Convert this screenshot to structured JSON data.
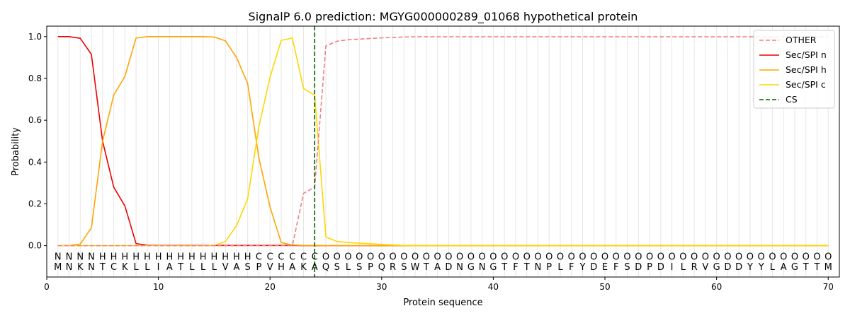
{
  "chart_data": {
    "type": "line",
    "title": "SignalP 6.0 prediction: MGYG000000289_01068 hypothetical protein",
    "xlabel": "Protein sequence",
    "ylabel": "Probability",
    "xlim": [
      0,
      71
    ],
    "ylim": [
      -0.15,
      1.05
    ],
    "x_ticks": [
      0,
      10,
      20,
      30,
      40,
      50,
      60,
      70
    ],
    "y_ticks": [
      0.0,
      0.2,
      0.4,
      0.6,
      0.8,
      1.0
    ],
    "x_tick_labels": [
      "0",
      "10",
      "20",
      "30",
      "40",
      "50",
      "60",
      "70"
    ],
    "y_tick_labels": [
      "0.0",
      "0.2",
      "0.4",
      "0.6",
      "0.8",
      "1.0"
    ],
    "grid": "vertical lines at every residue",
    "legend_position": "top-right",
    "sequence": [
      "M",
      "N",
      "K",
      "N",
      "T",
      "C",
      "K",
      "L",
      "L",
      "I",
      "A",
      "T",
      "L",
      "L",
      "L",
      "V",
      "A",
      "S",
      "P",
      "V",
      "H",
      "A",
      "K",
      "A",
      "Q",
      "S",
      "L",
      "S",
      "P",
      "Q",
      "R",
      "S",
      "W",
      "T",
      "A",
      "D",
      "N",
      "G",
      "N",
      "G",
      "T",
      "F",
      "T",
      "N",
      "P",
      "L",
      "F",
      "Y",
      "D",
      "E",
      "F",
      "S",
      "D",
      "P",
      "D",
      "I",
      "L",
      "R",
      "V",
      "G",
      "D",
      "D",
      "Y",
      "Y",
      "L",
      "A",
      "G",
      "T",
      "T",
      "M"
    ],
    "region_labels": [
      "N",
      "N",
      "N",
      "N",
      "H",
      "H",
      "H",
      "H",
      "H",
      "H",
      "H",
      "H",
      "H",
      "H",
      "H",
      "H",
      "H",
      "H",
      "C",
      "C",
      "C",
      "C",
      "C",
      "C",
      "O",
      "O",
      "O",
      "O",
      "O",
      "O",
      "O",
      "O",
      "O",
      "O",
      "O",
      "O",
      "O",
      "O",
      "O",
      "O",
      "O",
      "O",
      "O",
      "O",
      "O",
      "O",
      "O",
      "O",
      "O",
      "O",
      "O",
      "O",
      "O",
      "O",
      "O",
      "O",
      "O",
      "O",
      "O",
      "O",
      "O",
      "O",
      "O",
      "O",
      "O",
      "O",
      "O",
      "O",
      "O",
      "O"
    ],
    "region_colors": {
      "N": "#ff0000",
      "H": "#ffa500",
      "C": "#ffd700",
      "O": "#808080"
    },
    "cleavage_site": 24,
    "series": [
      {
        "name": "OTHER",
        "color": "#f08080",
        "dash": "dashed",
        "values": [
          0,
          0,
          0,
          0,
          0,
          0,
          0,
          0,
          0,
          0,
          0,
          0,
          0,
          0,
          0,
          0,
          0,
          0,
          0,
          0,
          0,
          0,
          0.25,
          0.28,
          0.955,
          0.978,
          0.985,
          0.988,
          0.991,
          0.994,
          0.996,
          0.998,
          0.999,
          0.999,
          0.999,
          0.999,
          0.999,
          0.999,
          0.999,
          0.999,
          0.999,
          0.999,
          0.999,
          0.999,
          0.999,
          0.999,
          0.999,
          0.999,
          0.999,
          0.999,
          0.999,
          0.999,
          0.999,
          0.999,
          0.999,
          0.999,
          0.999,
          0.999,
          0.999,
          0.999,
          0.999,
          0.999,
          0.999,
          0.999,
          0.999,
          0.999,
          0.999,
          0.999,
          0.999,
          0.999
        ]
      },
      {
        "name": "Sec/SPI n",
        "color": "#ee0000",
        "dash": "solid",
        "values": [
          1.0,
          1.0,
          0.992,
          0.915,
          0.5,
          0.28,
          0.19,
          0.01,
          0.002,
          0.001,
          0.001,
          0.001,
          0.001,
          0.001,
          0.001,
          0.001,
          0.001,
          0.001,
          0.001,
          0.001,
          0.001,
          0.001,
          0,
          0,
          0,
          0,
          0,
          0,
          0,
          0,
          0,
          0,
          0,
          0,
          0,
          0,
          0,
          0,
          0,
          0,
          0,
          0,
          0,
          0,
          0,
          0,
          0,
          0,
          0,
          0,
          0,
          0,
          0,
          0,
          0,
          0,
          0,
          0,
          0,
          0,
          0,
          0,
          0,
          0,
          0,
          0,
          0,
          0,
          0,
          0
        ]
      },
      {
        "name": "Sec/SPI h",
        "color": "#ffa500",
        "dash": "solid",
        "values": [
          0,
          0,
          0.008,
          0.085,
          0.5,
          0.72,
          0.81,
          0.993,
          1.0,
          1.0,
          1.0,
          1.0,
          1.0,
          1.0,
          0.998,
          0.98,
          0.9,
          0.775,
          0.42,
          0.185,
          0.015,
          0.003,
          0.001,
          0.001,
          0,
          0,
          0,
          0,
          0,
          0,
          0,
          0,
          0,
          0,
          0,
          0,
          0,
          0,
          0,
          0,
          0,
          0,
          0,
          0,
          0,
          0,
          0,
          0,
          0,
          0,
          0,
          0,
          0,
          0,
          0,
          0,
          0,
          0,
          0,
          0,
          0,
          0,
          0,
          0,
          0,
          0,
          0,
          0,
          0,
          0
        ]
      },
      {
        "name": "Sec/SPI c",
        "color": "#ffd700",
        "dash": "solid",
        "values": [
          0,
          0,
          0,
          0,
          0,
          0,
          0,
          0,
          0,
          0,
          0,
          0,
          0,
          0,
          0.001,
          0.02,
          0.095,
          0.225,
          0.57,
          0.805,
          0.982,
          0.993,
          0.752,
          0.72,
          0.042,
          0.02,
          0.015,
          0.012,
          0.009,
          0.006,
          0.003,
          0.001,
          0,
          0,
          0,
          0,
          0,
          0,
          0,
          0,
          0,
          0,
          0,
          0,
          0,
          0,
          0,
          0,
          0,
          0,
          0,
          0,
          0,
          0,
          0,
          0,
          0,
          0,
          0,
          0,
          0,
          0,
          0,
          0,
          0,
          0,
          0,
          0,
          0,
          0
        ]
      }
    ],
    "legend": [
      {
        "label": "OTHER",
        "color": "#f08080",
        "dash": "dashed"
      },
      {
        "label": "Sec/SPI n",
        "color": "#ee0000",
        "dash": "solid"
      },
      {
        "label": "Sec/SPI h",
        "color": "#ffa500",
        "dash": "solid"
      },
      {
        "label": "Sec/SPI c",
        "color": "#ffd700",
        "dash": "solid"
      },
      {
        "label": "CS",
        "color": "#006400",
        "dash": "dashed"
      }
    ]
  }
}
